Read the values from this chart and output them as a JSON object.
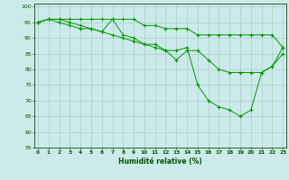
{
  "xlabel": "Humidité relative (%)",
  "xlim": [
    -0.3,
    23.3
  ],
  "ylim": [
    55,
    101
  ],
  "yticks": [
    55,
    60,
    65,
    70,
    75,
    80,
    85,
    90,
    95,
    100
  ],
  "xticks": [
    0,
    1,
    2,
    3,
    4,
    5,
    6,
    7,
    8,
    9,
    10,
    11,
    12,
    13,
    14,
    15,
    16,
    17,
    18,
    19,
    20,
    21,
    22,
    23
  ],
  "bg_color": "#cdeaea",
  "grid_color": "#a8cccc",
  "line_color": "#009900",
  "line1_y": [
    95,
    96,
    96,
    96,
    96,
    96,
    96,
    96,
    96,
    96,
    94,
    94,
    93,
    93,
    93,
    91,
    91,
    91,
    91,
    91,
    91,
    91,
    91,
    87
  ],
  "line2_y": [
    95,
    96,
    96,
    95,
    94,
    93,
    92,
    91,
    90,
    89,
    88,
    87,
    86,
    83,
    86,
    86,
    83,
    80,
    79,
    79,
    79,
    79,
    81,
    87
  ],
  "line3_y": [
    95,
    96,
    95,
    94,
    93,
    93,
    92,
    96,
    91,
    90,
    88,
    88,
    86,
    86,
    87,
    75,
    70,
    68,
    67,
    65,
    67,
    79,
    81,
    85
  ]
}
